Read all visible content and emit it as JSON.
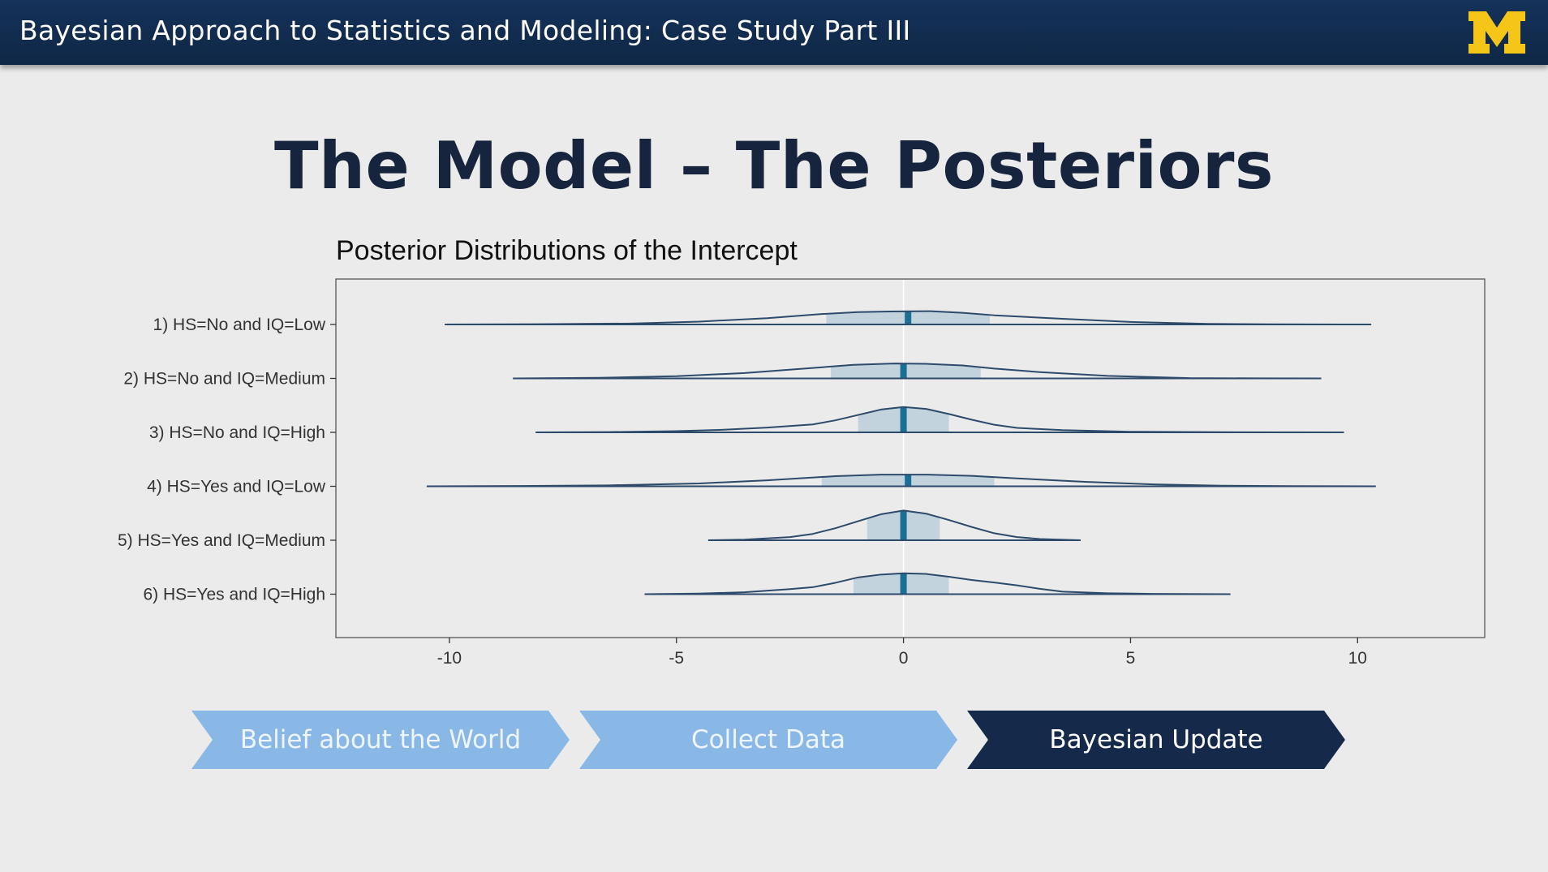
{
  "header": {
    "title": "Bayesian Approach to Statistics and Modeling: Case Study Part III"
  },
  "slide": {
    "title": "The Model – The Posteriors"
  },
  "chart_data": {
    "type": "ridgeline",
    "title": "Posterior Distributions of the Intercept",
    "xlabel": "",
    "ylabel": "",
    "xlim": [
      -12.5,
      12.8
    ],
    "x_ticks": [
      -10,
      -5,
      0,
      5,
      10
    ],
    "x_tick_labels": [
      "-10",
      "-5",
      "0",
      "5",
      "10"
    ],
    "grid": false,
    "series": [
      {
        "label": "1) HS=No and IQ=Low",
        "median": 0.1,
        "interval": [
          -1.7,
          1.9
        ],
        "range": [
          -10.1,
          10.3
        ],
        "peak_height": 0.42,
        "density": [
          [
            -10.1,
            0
          ],
          [
            -8,
            0.01
          ],
          [
            -6,
            0.03
          ],
          [
            -4.5,
            0.09
          ],
          [
            -3,
            0.2
          ],
          [
            -1.8,
            0.33
          ],
          [
            -1,
            0.39
          ],
          [
            -0.3,
            0.41
          ],
          [
            0.6,
            0.42
          ],
          [
            1.3,
            0.37
          ],
          [
            2,
            0.29
          ],
          [
            3.5,
            0.18
          ],
          [
            5,
            0.08
          ],
          [
            6.7,
            0.02
          ],
          [
            8,
            0.005
          ],
          [
            10.3,
            0
          ]
        ]
      },
      {
        "label": "2) HS=No and IQ=Medium",
        "median": 0.0,
        "interval": [
          -1.6,
          1.7
        ],
        "range": [
          -8.6,
          9.2
        ],
        "peak_height": 0.47,
        "density": [
          [
            -8.6,
            0
          ],
          [
            -6.7,
            0.02
          ],
          [
            -5,
            0.07
          ],
          [
            -3.5,
            0.17
          ],
          [
            -2,
            0.33
          ],
          [
            -1.1,
            0.43
          ],
          [
            -0.2,
            0.47
          ],
          [
            0.5,
            0.46
          ],
          [
            1.3,
            0.41
          ],
          [
            2,
            0.31
          ],
          [
            3,
            0.2
          ],
          [
            4.5,
            0.08
          ],
          [
            6.3,
            0.01
          ],
          [
            7.7,
            0.003
          ],
          [
            9.2,
            0
          ]
        ]
      },
      {
        "label": "3) HS=No and IQ=High",
        "median": 0.0,
        "interval": [
          -1.0,
          1.0
        ],
        "range": [
          -8.1,
          9.7
        ],
        "peak_height": 0.8,
        "density": [
          [
            -8.1,
            0
          ],
          [
            -6.5,
            0.01
          ],
          [
            -5,
            0.04
          ],
          [
            -4,
            0.08
          ],
          [
            -3,
            0.15
          ],
          [
            -2,
            0.25
          ],
          [
            -1.5,
            0.38
          ],
          [
            -1,
            0.55
          ],
          [
            -0.5,
            0.72
          ],
          [
            0,
            0.8
          ],
          [
            0.5,
            0.74
          ],
          [
            1,
            0.58
          ],
          [
            1.5,
            0.4
          ],
          [
            2,
            0.24
          ],
          [
            2.5,
            0.14
          ],
          [
            3.5,
            0.07
          ],
          [
            5,
            0.02
          ],
          [
            7,
            0.005
          ],
          [
            9.7,
            0
          ]
        ]
      },
      {
        "label": "4) HS=Yes and IQ=Low",
        "median": 0.1,
        "interval": [
          -1.8,
          2.0
        ],
        "range": [
          -10.5,
          10.4
        ],
        "peak_height": 0.37,
        "density": [
          [
            -10.5,
            0
          ],
          [
            -8.5,
            0.01
          ],
          [
            -6.5,
            0.03
          ],
          [
            -4.5,
            0.09
          ],
          [
            -3,
            0.19
          ],
          [
            -1.5,
            0.32
          ],
          [
            -0.5,
            0.37
          ],
          [
            0.5,
            0.37
          ],
          [
            1.5,
            0.33
          ],
          [
            2.5,
            0.25
          ],
          [
            4,
            0.14
          ],
          [
            5.5,
            0.06
          ],
          [
            7,
            0.02
          ],
          [
            8.5,
            0.005
          ],
          [
            10.4,
            0
          ]
        ]
      },
      {
        "label": "5) HS=Yes and IQ=Medium",
        "median": 0.0,
        "interval": [
          -0.8,
          0.8
        ],
        "range": [
          -4.3,
          3.9
        ],
        "peak_height": 0.94,
        "density": [
          [
            -4.3,
            0
          ],
          [
            -3.5,
            0.02
          ],
          [
            -2.5,
            0.1
          ],
          [
            -2,
            0.2
          ],
          [
            -1.5,
            0.38
          ],
          [
            -1,
            0.6
          ],
          [
            -0.5,
            0.82
          ],
          [
            0,
            0.94
          ],
          [
            0.5,
            0.84
          ],
          [
            1,
            0.64
          ],
          [
            1.5,
            0.42
          ],
          [
            2,
            0.22
          ],
          [
            2.5,
            0.1
          ],
          [
            3,
            0.04
          ],
          [
            3.9,
            0
          ]
        ]
      },
      {
        "label": "6) HS=Yes and IQ=High",
        "median": 0.0,
        "interval": [
          -1.1,
          1.0
        ],
        "range": [
          -5.7,
          7.2
        ],
        "peak_height": 0.67,
        "density": [
          [
            -5.7,
            0
          ],
          [
            -4.5,
            0.02
          ],
          [
            -3.5,
            0.06
          ],
          [
            -2.5,
            0.16
          ],
          [
            -2,
            0.22
          ],
          [
            -1.5,
            0.36
          ],
          [
            -1,
            0.53
          ],
          [
            -0.5,
            0.62
          ],
          [
            0,
            0.66
          ],
          [
            0.5,
            0.64
          ],
          [
            1,
            0.55
          ],
          [
            1.5,
            0.45
          ],
          [
            2,
            0.37
          ],
          [
            2.5,
            0.28
          ],
          [
            3,
            0.17
          ],
          [
            3.5,
            0.08
          ],
          [
            4.5,
            0.03
          ],
          [
            5.5,
            0.01
          ],
          [
            7.2,
            0
          ]
        ]
      }
    ]
  },
  "process": {
    "steps": [
      {
        "label": "Belief about the World",
        "active": false
      },
      {
        "label": "Collect Data",
        "active": false
      },
      {
        "label": "Bayesian Update",
        "active": true
      }
    ]
  },
  "colors": {
    "header_bg": "#15325a",
    "logo": "#f5c518",
    "curve": "#2e4a6b",
    "interval_fill": "#c3d3de",
    "median": "#1b6f95",
    "step_inactive": "#8ab8e6",
    "step_active": "#15294a"
  }
}
